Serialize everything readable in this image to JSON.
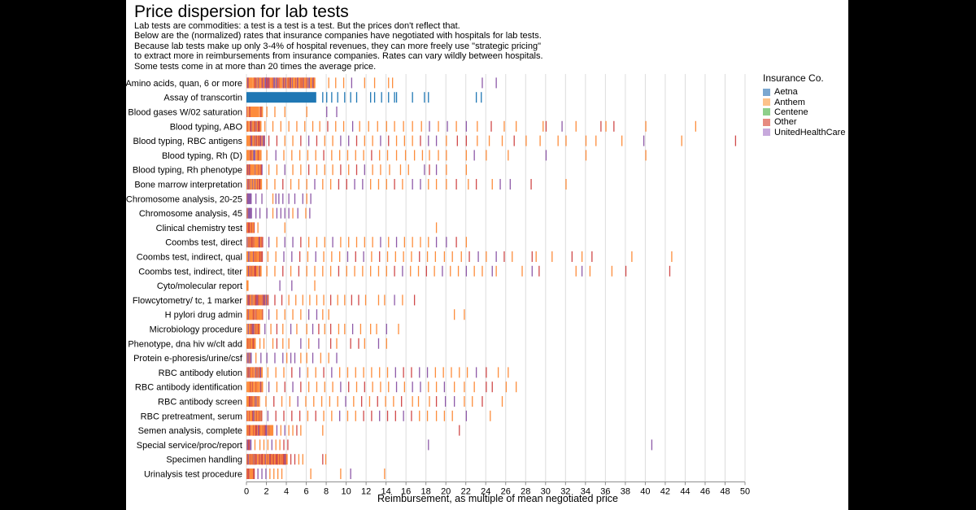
{
  "title": "Price dispersion for lab tests",
  "description": [
    "Lab tests are commodities: a test is a test is a test. But the prices don't reflect that.",
    "Below are the (normalized) rates that insurance companies have negotiated with hospitals for lab tests.",
    "Because lab tests make up only 3-4% of hospital revenues, they can more freely use \"strategic pricing\"",
    "to extract more in reimbursements from insurance companies. Rates can vary wildly between hospitals.",
    "Some tests come in at more than 20 times the average price."
  ],
  "legend": {
    "title": "Insurance Co.",
    "items": [
      {
        "name": "Aetna",
        "color": "#7ba7d0"
      },
      {
        "name": "Anthem",
        "color": "#fdc28a"
      },
      {
        "name": "Centene",
        "color": "#8ecf8a"
      },
      {
        "name": "Other",
        "color": "#e68a80"
      },
      {
        "name": "UnitedHealthCare",
        "color": "#c7a9dc"
      }
    ]
  },
  "chart_data": {
    "type": "strip",
    "xlabel": "Reimbursement, as multiple of mean negotiated price",
    "xlim": [
      0,
      50
    ],
    "xticks": [
      0,
      2,
      4,
      6,
      8,
      10,
      12,
      14,
      16,
      18,
      20,
      22,
      24,
      26,
      28,
      30,
      32,
      34,
      36,
      38,
      40,
      42,
      44,
      46,
      48,
      50
    ],
    "grid": true,
    "colors": {
      "Aetna": "#1f77b4",
      "Anthem": "#fd8d3c",
      "Centene": "#2ca02c",
      "Other": "#d04a4a",
      "UnitedHealthCare": "#8e5aa8"
    },
    "categories": [
      {
        "name": "Amino acids, quan, 6 or more",
        "core": 6.8,
        "scatter": [
          8.2,
          8.9,
          9.7,
          10.5,
          11.8,
          12.8,
          14.2,
          14.6,
          23.6,
          25.0
        ],
        "mix": "mixed"
      },
      {
        "name": "Assay of transcortin",
        "core": 7.0,
        "scatter": [
          7.6,
          8.0,
          8.5,
          9.1,
          9.8,
          10.4,
          11.0,
          12.4,
          12.8,
          13.5,
          14.2,
          14.8,
          15.0,
          16.6,
          17.8,
          18.2,
          23.0,
          23.5
        ],
        "mix": "aetna"
      },
      {
        "name": "Blood gases W/02 saturation",
        "core": 1.6,
        "scatter": [
          2.0,
          2.8,
          3.8,
          6.0,
          8.0,
          9.0
        ],
        "mix": "anthem"
      },
      {
        "name": "Blood typing, ABO",
        "core": 1.4,
        "scatter": [
          1.8,
          2.6,
          3.4,
          4.2,
          5.0,
          5.8,
          6.6,
          7.3,
          8.1,
          8.9,
          9.7,
          10.6,
          11.3,
          12.2,
          13.1,
          14.0,
          14.8,
          15.7,
          16.6,
          17.5,
          18.3,
          19.2,
          20.1,
          21.0,
          22.0,
          23.1,
          24.5,
          25.8,
          27.0,
          29.7,
          30.0,
          31.6,
          33.0,
          35.5,
          36.0,
          36.8,
          40.0,
          45.0
        ],
        "mix": "mixed"
      },
      {
        "name": "Blood typing, RBC antigens",
        "core": 1.8,
        "scatter": [
          2.2,
          3.0,
          3.8,
          4.6,
          5.4,
          6.2,
          7.0,
          7.8,
          8.6,
          9.4,
          10.2,
          11.0,
          11.8,
          12.6,
          13.4,
          14.2,
          15.0,
          15.8,
          16.6,
          17.4,
          18.2,
          19.0,
          20.0,
          21.1,
          22.0,
          23.1,
          24.3,
          25.6,
          26.8,
          28.0,
          29.4,
          31.2,
          32.0,
          34.0,
          35.0,
          37.6,
          39.8,
          43.6,
          49.0
        ],
        "mix": "mixed"
      },
      {
        "name": "Blood typing, Rh (D)",
        "core": 1.5,
        "scatter": [
          2.0,
          2.9,
          3.7,
          4.5,
          5.3,
          6.1,
          6.9,
          7.7,
          8.5,
          9.3,
          10.1,
          10.9,
          11.7,
          12.5,
          13.3,
          14.1,
          15.0,
          15.9,
          16.8,
          17.6,
          18.3,
          19.2,
          20.0,
          22.0,
          22.8,
          24.0,
          26.2,
          30.0,
          34.0,
          40.0
        ],
        "mix": "mixed"
      },
      {
        "name": "Blood typing, Rh phenotype",
        "core": 1.6,
        "scatter": [
          2.2,
          3.0,
          3.8,
          4.6,
          5.4,
          6.2,
          7.0,
          7.8,
          8.6,
          9.4,
          10.2,
          11.0,
          11.8,
          12.6,
          13.4,
          14.3,
          15.4,
          16.2,
          17.8,
          18.3,
          19.0,
          20.0,
          22.0
        ],
        "mix": "mixed"
      },
      {
        "name": "Bone marrow interpretation",
        "core": 1.4,
        "scatter": [
          2.0,
          2.8,
          3.6,
          4.4,
          5.2,
          6.0,
          6.8,
          7.6,
          8.4,
          9.2,
          10.0,
          10.8,
          11.6,
          12.4,
          13.2,
          14.0,
          14.8,
          15.6,
          16.6,
          17.4,
          18.2,
          19.0,
          20.0,
          21.0,
          22.2,
          23.0,
          24.6,
          25.4,
          26.4,
          28.5,
          32.0
        ],
        "mix": "mixed"
      },
      {
        "name": "Chromosome analysis, 20-25",
        "core": 0.5,
        "scatter": [
          0.9,
          1.5,
          2.6,
          2.9,
          3.2,
          3.6,
          4.2,
          4.8,
          5.6,
          6.0,
          6.4
        ],
        "mix": "uhc"
      },
      {
        "name": "Chromosome analysis, 45",
        "core": 0.5,
        "scatter": [
          0.9,
          1.3,
          2.0,
          2.6,
          3.0,
          3.4,
          3.8,
          4.2,
          4.6,
          5.1,
          5.9,
          6.3
        ],
        "mix": "uhc"
      },
      {
        "name": "Clinical chemistry test",
        "core": 0.8,
        "scatter": [
          1.1,
          3.8,
          19.0
        ],
        "mix": "anthem"
      },
      {
        "name": "Coombs test, direct",
        "core": 1.6,
        "scatter": [
          2.2,
          3.0,
          3.8,
          4.6,
          5.4,
          6.2,
          7.0,
          7.8,
          8.6,
          9.4,
          10.2,
          11.0,
          11.8,
          12.6,
          13.4,
          14.2,
          15.0,
          15.8,
          16.6,
          17.4,
          18.2,
          19.0,
          20.0,
          21.0,
          22.0
        ],
        "mix": "mixed"
      },
      {
        "name": "Coombs test, indirect, qual",
        "core": 1.5,
        "scatter": [
          2.1,
          2.9,
          3.7,
          4.5,
          5.3,
          6.1,
          6.9,
          7.7,
          8.5,
          9.3,
          10.1,
          10.9,
          11.7,
          12.5,
          13.3,
          14.1,
          14.9,
          15.7,
          16.5,
          17.3,
          18.1,
          18.9,
          19.8,
          20.6,
          21.5,
          22.3,
          23.2,
          24.0,
          25.0,
          25.8,
          26.6,
          28.6,
          29.0,
          30.6,
          32.6,
          33.6,
          34.6,
          38.6,
          42.6
        ],
        "mix": "mixed"
      },
      {
        "name": "Coombs test, indirect, titer",
        "core": 1.4,
        "scatter": [
          2.0,
          2.8,
          3.6,
          4.4,
          5.2,
          6.0,
          6.8,
          7.6,
          8.4,
          9.2,
          10.0,
          10.8,
          11.6,
          12.4,
          13.2,
          14.0,
          14.8,
          15.6,
          16.4,
          17.2,
          18.0,
          18.8,
          19.6,
          20.4,
          21.2,
          22.0,
          22.8,
          23.6,
          24.6,
          25.0,
          27.6,
          28.6,
          29.3,
          33.0,
          33.6,
          34.4,
          36.6,
          38.0,
          42.4
        ],
        "mix": "mixed"
      },
      {
        "name": "Cyto/molecular report",
        "core": 0.1,
        "scatter": [
          3.3,
          4.5,
          6.8
        ],
        "mix": "anthem"
      },
      {
        "name": "Flowcytometry/ tc, 1 marker",
        "core": 2.2,
        "scatter": [
          2.8,
          3.5,
          4.2,
          4.9,
          5.6,
          6.3,
          7.0,
          7.7,
          8.4,
          9.1,
          9.8,
          10.5,
          11.2,
          11.9,
          13.2,
          13.8,
          14.8,
          15.6,
          16.8
        ],
        "mix": "mixed"
      },
      {
        "name": "H pylori drug admin",
        "core": 1.6,
        "scatter": [
          2.2,
          3.0,
          3.8,
          4.6,
          5.4,
          6.2,
          7.0,
          7.6,
          8.2,
          20.8,
          21.8
        ],
        "mix": "mixed"
      },
      {
        "name": "Microbiology procedure",
        "core": 1.3,
        "scatter": [
          1.8,
          2.4,
          3.0,
          3.6,
          4.4,
          5.0,
          6.0,
          6.6,
          7.2,
          7.8,
          8.4,
          9.2,
          9.8,
          10.6,
          11.4,
          12.4,
          13.0,
          14.0,
          15.2
        ],
        "mix": "mixed"
      },
      {
        "name": "Phenotype, dna hiv w/clt add",
        "core": 0.9,
        "scatter": [
          1.3,
          1.7,
          2.6,
          3.0,
          3.6,
          4.2,
          5.4,
          6.2,
          7.2,
          8.4,
          9.0,
          10.4,
          11.2,
          11.8,
          13.2,
          14.0
        ],
        "mix": "mixed"
      },
      {
        "name": "Protein e-phoresis/urine/csf",
        "core": 0.4,
        "scatter": [
          0.9,
          1.4,
          2.0,
          2.8,
          3.6,
          4.0,
          4.4,
          4.8,
          5.4,
          6.0,
          6.6,
          7.4,
          8.2,
          9.0
        ],
        "mix": "uhc"
      },
      {
        "name": "RBC antibody elution",
        "core": 1.5,
        "scatter": [
          2.1,
          2.9,
          3.7,
          4.5,
          5.3,
          6.1,
          6.9,
          7.7,
          8.5,
          9.3,
          10.1,
          10.9,
          11.7,
          12.5,
          13.3,
          14.1,
          14.9,
          15.7,
          16.5,
          17.3,
          18.1,
          18.9,
          19.7,
          20.5,
          21.3,
          22.1,
          23.0,
          24.0,
          25.2,
          26.2
        ],
        "mix": "mixed"
      },
      {
        "name": "RBC antibody identification",
        "core": 1.6,
        "scatter": [
          2.2,
          3.0,
          3.8,
          4.6,
          5.4,
          6.2,
          7.0,
          7.8,
          8.6,
          9.4,
          10.2,
          11.0,
          11.8,
          12.6,
          13.4,
          14.2,
          15.0,
          15.8,
          16.6,
          17.4,
          18.2,
          19.0,
          19.8,
          20.8,
          21.8,
          22.8,
          24.0,
          24.6,
          26.0,
          27.0
        ],
        "mix": "mixed"
      },
      {
        "name": "RBC antibody screen",
        "core": 1.3,
        "scatter": [
          1.9,
          2.7,
          3.5,
          4.3,
          5.1,
          5.9,
          6.7,
          7.5,
          8.3,
          9.1,
          9.9,
          10.7,
          11.5,
          12.3,
          13.1,
          13.9,
          14.7,
          15.5,
          16.6,
          17.2,
          18.3,
          19.0,
          19.9,
          20.8,
          21.8,
          22.6,
          23.6,
          25.6
        ],
        "mix": "mixed"
      },
      {
        "name": "RBC pretreatment, serum",
        "core": 1.5,
        "scatter": [
          2.1,
          2.9,
          3.7,
          4.5,
          5.3,
          6.1,
          6.9,
          7.7,
          8.5,
          9.3,
          10.1,
          10.9,
          11.7,
          12.5,
          13.3,
          14.1,
          14.9,
          15.7,
          16.5,
          17.3,
          18.1,
          19.0,
          19.8,
          20.6,
          22.0,
          24.4
        ],
        "mix": "mixed"
      },
      {
        "name": "Semen analysis, complete",
        "core": 2.6,
        "scatter": [
          3.0,
          3.4,
          3.8,
          4.2,
          4.6,
          5.0,
          5.4,
          7.6,
          21.3
        ],
        "mix": "mixed"
      },
      {
        "name": "Special service/proc/report",
        "core": 0.4,
        "scatter": [
          0.8,
          1.3,
          1.7,
          2.1,
          2.5,
          2.9,
          3.3,
          3.7,
          4.1,
          18.2,
          40.6
        ],
        "mix": "mixed"
      },
      {
        "name": "Specimen handling",
        "core": 4.0,
        "scatter": [
          4.4,
          4.8,
          5.2,
          5.6,
          7.6,
          7.9
        ],
        "mix": "mixed"
      },
      {
        "name": "Urinalysis test procedure",
        "core": 0.7,
        "scatter": [
          1.1,
          1.5,
          1.9,
          2.3,
          2.7,
          3.1,
          3.5,
          6.4,
          9.4,
          10.4,
          13.8
        ],
        "mix": "anthem"
      }
    ]
  }
}
